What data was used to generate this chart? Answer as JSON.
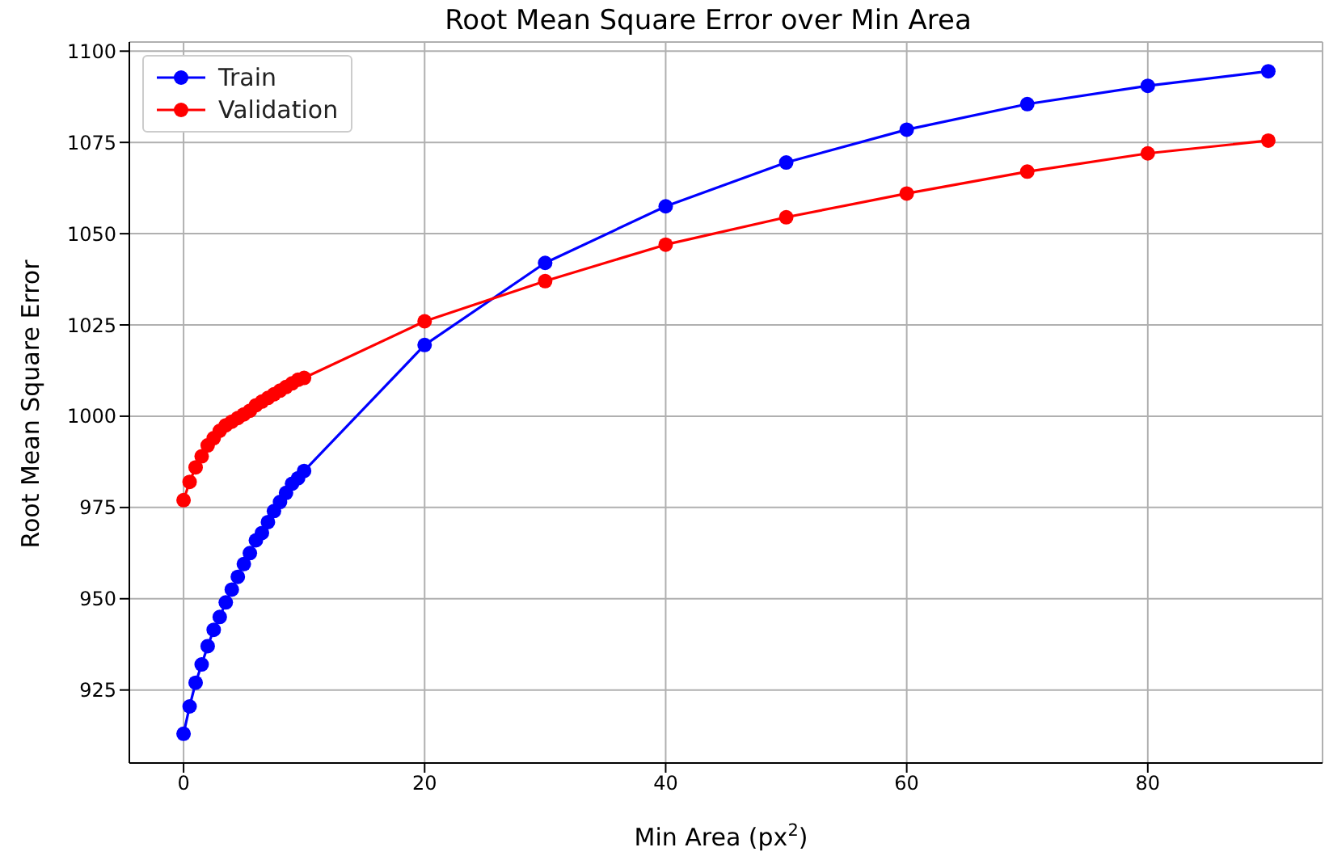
{
  "chart_data": {
    "type": "line",
    "title": "Root Mean Square Error over Min Area",
    "xlabel": "Min Area (px$^{2}$)",
    "ylabel": "Root Mean Square Error",
    "x": [
      0,
      0.5,
      1,
      1.5,
      2,
      2.5,
      3,
      3.5,
      4,
      4.5,
      5,
      5.5,
      6,
      6.5,
      7,
      7.5,
      8,
      8.5,
      9,
      9.5,
      10,
      20,
      30,
      40,
      50,
      60,
      70,
      80,
      90
    ],
    "series": [
      {
        "name": "Train",
        "color": "#0000ff",
        "values": [
          913,
          920.5,
          927,
          932,
          937,
          941.5,
          945,
          949,
          952.5,
          956,
          959.5,
          962.5,
          966,
          968,
          971,
          974,
          976.5,
          979,
          981.5,
          983,
          985,
          1019.5,
          1042,
          1057.5,
          1069.5,
          1078.5,
          1085.5,
          1090.5,
          1094.5
        ]
      },
      {
        "name": "Validation",
        "color": "#ff0000",
        "values": [
          977,
          982,
          986,
          989,
          992,
          994,
          996,
          997.5,
          998.5,
          999.5,
          1000.5,
          1001.5,
          1003,
          1004,
          1005,
          1006,
          1007,
          1008,
          1009,
          1010,
          1010.5,
          1026,
          1037,
          1047,
          1054.5,
          1061,
          1067,
          1072,
          1075.5
        ]
      }
    ],
    "xlim": [
      -4.5,
      94.5
    ],
    "xticks": [
      0,
      20,
      40,
      60,
      80
    ],
    "ylim": [
      905,
      1102.5
    ],
    "yticks": [
      925,
      950,
      975,
      1000,
      1025,
      1050,
      1075,
      1100
    ],
    "grid": true,
    "legend": "top left",
    "marker": "circle",
    "line_style": "solid"
  }
}
